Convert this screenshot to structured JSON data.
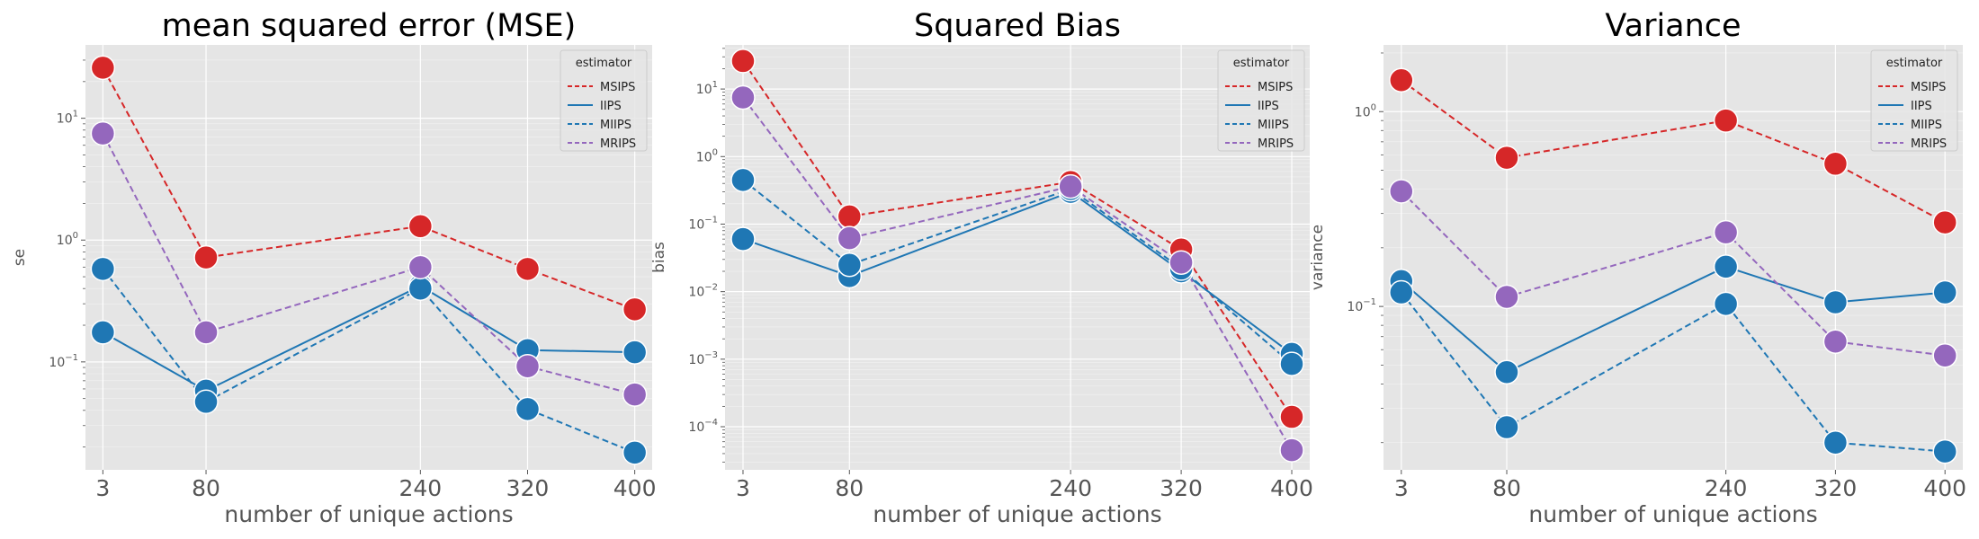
{
  "chart_data": [
    {
      "type": "line",
      "title": "mean squared error (MSE)",
      "xlabel": "number of unique actions",
      "ylabel": "se",
      "x": [
        3,
        80,
        240,
        320,
        400
      ],
      "xticks": [
        "3",
        "80",
        "240",
        "320",
        "400"
      ],
      "xlim": [
        -10,
        413
      ],
      "yscale": "log",
      "ylim": [
        0.013,
        40
      ],
      "yticks": [
        {
          "base": "10",
          "exp": "1",
          "value": 10
        },
        {
          "base": "10",
          "exp": "0",
          "value": 1
        },
        {
          "base": "10",
          "exp": "−1",
          "value": 0.1
        }
      ],
      "grid": true,
      "legend": {
        "title": "estimator",
        "placement": "top-right"
      },
      "series": [
        {
          "name": "MSIPS",
          "color": "#d62728",
          "dash": "dashed",
          "values": [
            26,
            0.72,
            1.3,
            0.58,
            0.27
          ]
        },
        {
          "name": "IIPS",
          "color": "#1f77b4",
          "dash": "solid",
          "values": [
            0.175,
            0.058,
            0.42,
            0.125,
            0.12
          ]
        },
        {
          "name": "MIIPS",
          "color": "#1f77b4",
          "dash": "dashed",
          "values": [
            0.58,
            0.047,
            0.4,
            0.041,
            0.018
          ]
        },
        {
          "name": "MRIPS",
          "color": "#9467bd",
          "dash": "dashed",
          "values": [
            7.5,
            0.175,
            0.6,
            0.092,
            0.054
          ]
        }
      ]
    },
    {
      "type": "line",
      "title": "Squared Bias",
      "xlabel": "number of unique actions",
      "ylabel": "bias",
      "x": [
        3,
        80,
        240,
        320,
        400
      ],
      "xticks": [
        "3",
        "80",
        "240",
        "320",
        "400"
      ],
      "xlim": [
        -10,
        413
      ],
      "yscale": "log",
      "ylim": [
        2.3e-05,
        45
      ],
      "yticks": [
        {
          "base": "10",
          "exp": "1",
          "value": 10
        },
        {
          "base": "10",
          "exp": "0",
          "value": 1
        },
        {
          "base": "10",
          "exp": "−1",
          "value": 0.1
        },
        {
          "base": "10",
          "exp": "−2",
          "value": 0.01
        },
        {
          "base": "10",
          "exp": "−3",
          "value": 0.001
        },
        {
          "base": "10",
          "exp": "−4",
          "value": 0.0001
        }
      ],
      "grid": true,
      "legend": {
        "title": "estimator",
        "placement": "top-right"
      },
      "series": [
        {
          "name": "MSIPS",
          "color": "#d62728",
          "dash": "dashed",
          "values": [
            26,
            0.13,
            0.42,
            0.042,
            0.00014
          ]
        },
        {
          "name": "IIPS",
          "color": "#1f77b4",
          "dash": "solid",
          "values": [
            0.06,
            0.017,
            0.3,
            0.02,
            0.0012
          ]
        },
        {
          "name": "MIIPS",
          "color": "#1f77b4",
          "dash": "dashed",
          "values": [
            0.45,
            0.025,
            0.33,
            0.022,
            0.00085
          ]
        },
        {
          "name": "MRIPS",
          "color": "#9467bd",
          "dash": "dashed",
          "values": [
            7.5,
            0.062,
            0.36,
            0.027,
            4.5e-05
          ]
        }
      ]
    },
    {
      "type": "line",
      "title": "Variance",
      "xlabel": "number of unique actions",
      "ylabel": "variance",
      "x": [
        3,
        80,
        240,
        320,
        400
      ],
      "xticks": [
        "3",
        "80",
        "240",
        "320",
        "400"
      ],
      "xlim": [
        -10,
        413
      ],
      "yscale": "log",
      "ylim": [
        0.0145,
        2.2
      ],
      "yticks": [
        {
          "base": "10",
          "exp": "0",
          "value": 1
        },
        {
          "base": "10",
          "exp": "−1",
          "value": 0.1
        }
      ],
      "grid": true,
      "legend": {
        "title": "estimator",
        "placement": "top-right"
      },
      "series": [
        {
          "name": "MSIPS",
          "color": "#d62728",
          "dash": "dashed",
          "values": [
            1.45,
            0.58,
            0.9,
            0.54,
            0.27
          ]
        },
        {
          "name": "IIPS",
          "color": "#1f77b4",
          "dash": "solid",
          "values": [
            0.135,
            0.046,
            0.16,
            0.105,
            0.118
          ]
        },
        {
          "name": "MIIPS",
          "color": "#1f77b4",
          "dash": "dashed",
          "values": [
            0.118,
            0.024,
            0.103,
            0.02,
            0.018
          ]
        },
        {
          "name": "MRIPS",
          "color": "#9467bd",
          "dash": "dashed",
          "values": [
            0.39,
            0.112,
            0.24,
            0.066,
            0.056
          ]
        }
      ]
    }
  ]
}
